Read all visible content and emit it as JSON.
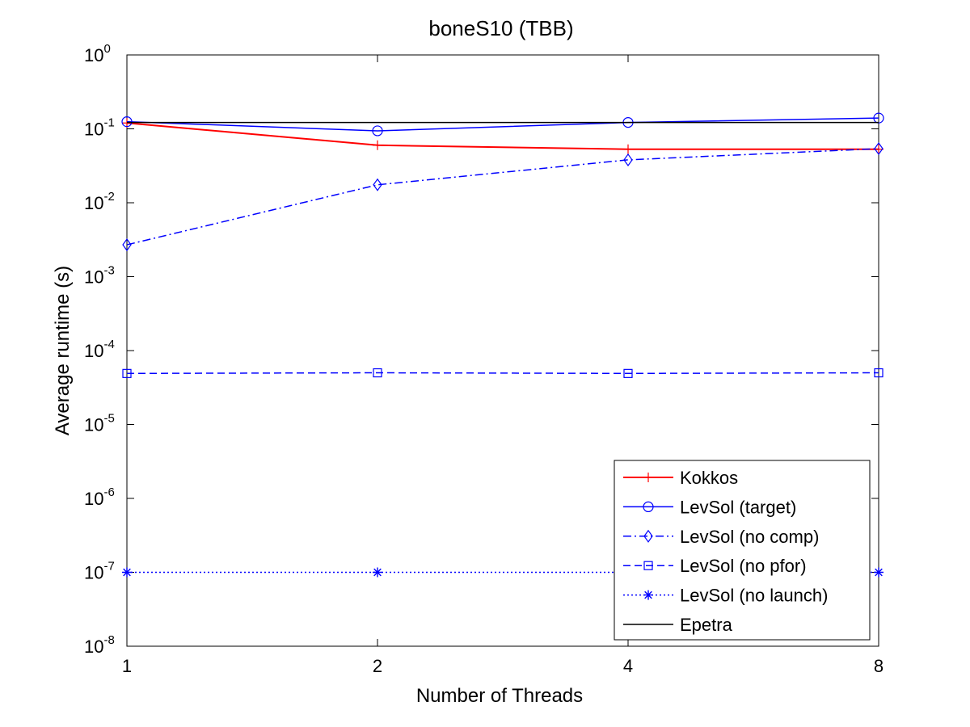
{
  "chart_data": {
    "type": "line",
    "title": "boneS10 (TBB)",
    "xlabel": "Number of Threads",
    "ylabel": "Average runtime (s)",
    "x_scale": "log2",
    "y_scale": "log10",
    "x": [
      1,
      2,
      4,
      8
    ],
    "x_tick_labels": [
      "1",
      "2",
      "4",
      "8"
    ],
    "xlim": [
      1,
      8
    ],
    "ylim": [
      1e-08,
      1
    ],
    "y_ticks": [
      {
        "base": "10",
        "exp": "-8",
        "value": 1e-08
      },
      {
        "base": "10",
        "exp": "-7",
        "value": 1e-07
      },
      {
        "base": "10",
        "exp": "-6",
        "value": 1e-06
      },
      {
        "base": "10",
        "exp": "-5",
        "value": 1e-05
      },
      {
        "base": "10",
        "exp": "-4",
        "value": 0.0001
      },
      {
        "base": "10",
        "exp": "-3",
        "value": 0.001
      },
      {
        "base": "10",
        "exp": "-2",
        "value": 0.01
      },
      {
        "base": "10",
        "exp": "-1",
        "value": 0.1
      },
      {
        "base": "10",
        "exp": "0",
        "value": 1
      }
    ],
    "grid": false,
    "legend_position": "bottom-right",
    "series": [
      {
        "name": "Kokkos",
        "color": "#ff0000",
        "dash": "solid",
        "marker": "plus",
        "values": [
          0.12,
          0.06,
          0.053,
          0.053
        ]
      },
      {
        "name": "LevSol (target)",
        "color": "#0000ff",
        "dash": "solid",
        "marker": "circle",
        "values": [
          0.125,
          0.094,
          0.122,
          0.14
        ]
      },
      {
        "name": "LevSol (no comp)",
        "color": "#0000ff",
        "dash": "dashdot",
        "marker": "diamond",
        "values": [
          0.0027,
          0.0175,
          0.038,
          0.054
        ]
      },
      {
        "name": "LevSol (no pfor)",
        "color": "#0000ff",
        "dash": "dashed",
        "marker": "square",
        "values": [
          4.9e-05,
          5e-05,
          4.9e-05,
          5e-05
        ]
      },
      {
        "name": "LevSol (no launch)",
        "color": "#0000ff",
        "dash": "dotted",
        "marker": "asterisk",
        "values": [
          1e-07,
          1e-07,
          1e-07,
          1e-07
        ]
      },
      {
        "name": "Epetra",
        "color": "#000000",
        "dash": "solid",
        "marker": "none",
        "values": [
          0.122,
          0.122,
          0.122,
          0.122
        ]
      }
    ]
  }
}
